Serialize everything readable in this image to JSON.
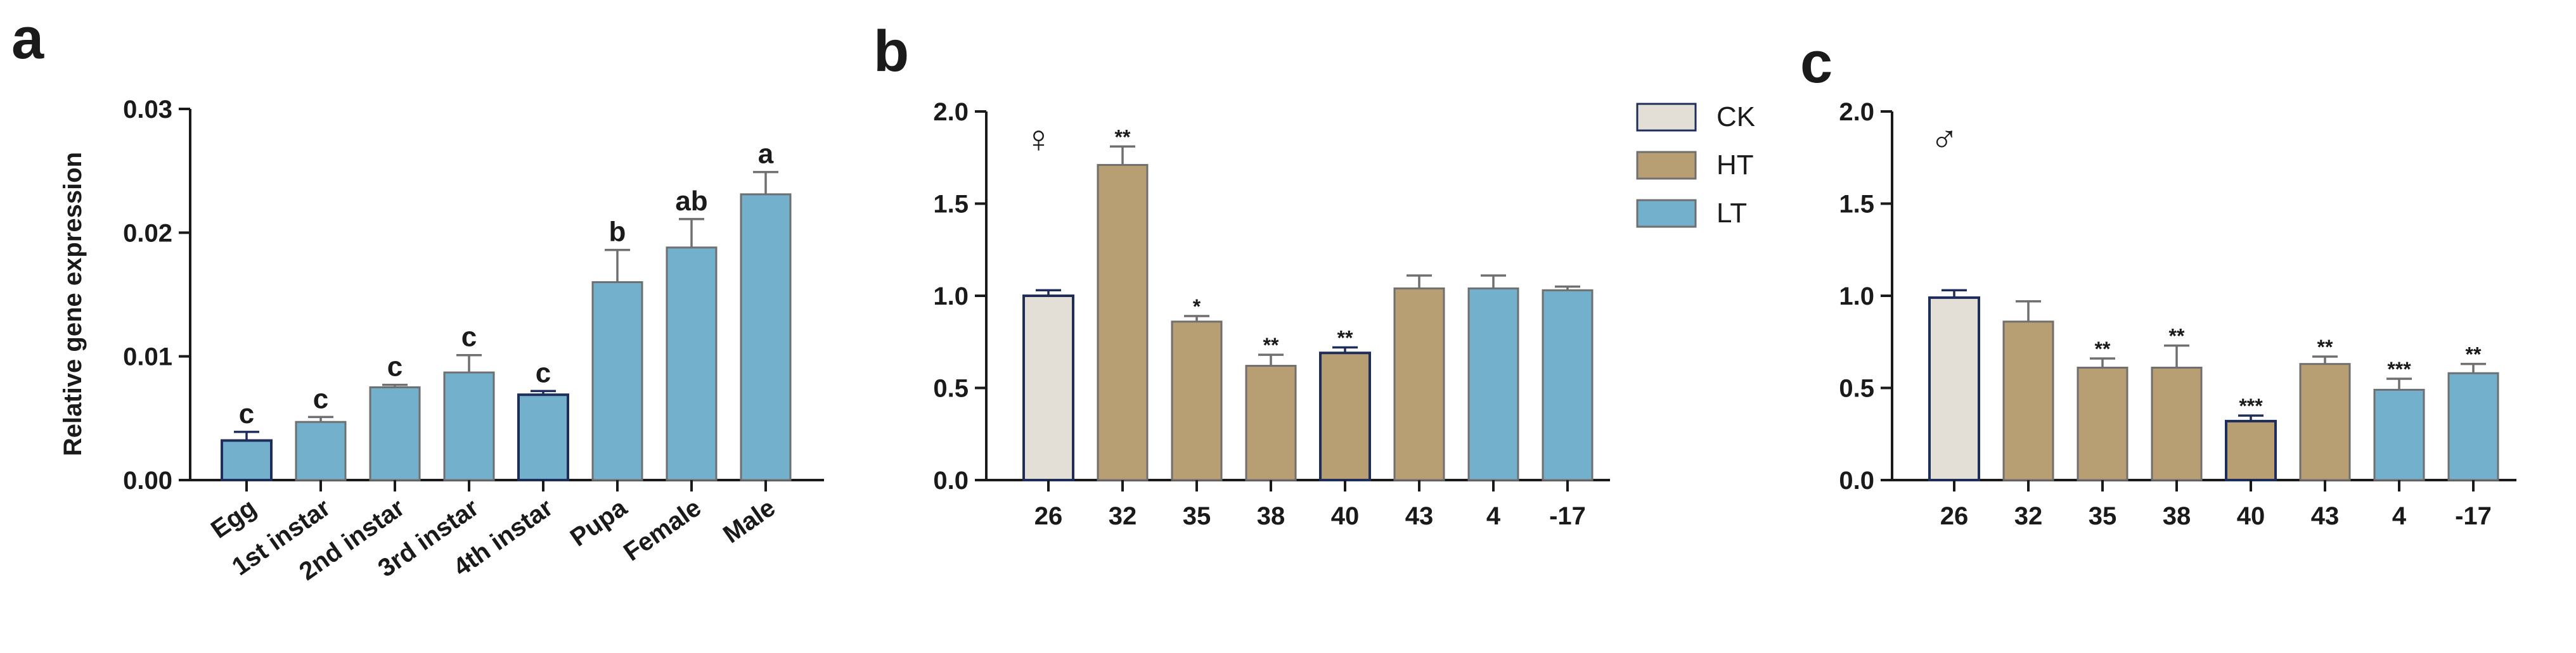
{
  "colors": {
    "CK": "#e4dfd6",
    "HT": "#b89e73",
    "LT": "#73b0cc",
    "axis": "#1a1a1a",
    "edge_dark": "#1f2d5a"
  },
  "chart_data": [
    {
      "panel": "a",
      "type": "bar",
      "ylabel": "Relative gene expression",
      "ylim": [
        0,
        0.03
      ],
      "yticks": [
        0,
        0.01,
        0.02,
        0.03
      ],
      "ytick_labels": [
        "0.00",
        "0.01",
        "0.02",
        "0.03"
      ],
      "categories": [
        "Egg",
        "1st instar",
        "2nd instar",
        "3rd instar",
        "4th instar",
        "Pupa",
        "Female",
        "Male"
      ],
      "values": [
        0.0032,
        0.0047,
        0.0075,
        0.0087,
        0.0069,
        0.016,
        0.0188,
        0.0231
      ],
      "errors": [
        0.0007,
        0.0004,
        0.0002,
        0.0014,
        0.0003,
        0.0026,
        0.0023,
        0.0018
      ],
      "groups": [
        "LT",
        "LT",
        "LT",
        "LT",
        "LT",
        "LT",
        "LT",
        "LT"
      ],
      "labels": [
        "c",
        "c",
        "c",
        "c",
        "c",
        "b",
        "ab",
        "a"
      ]
    },
    {
      "panel": "b",
      "type": "bar",
      "sex_symbol": "♀",
      "ylim": [
        0,
        2.0
      ],
      "yticks": [
        0,
        0.5,
        1.0,
        1.5,
        2.0
      ],
      "ytick_labels": [
        "0.0",
        "0.5",
        "1.0",
        "1.5",
        "2.0"
      ],
      "categories": [
        "26",
        "32",
        "35",
        "38",
        "40",
        "43",
        "4",
        "-17"
      ],
      "values": [
        1.0,
        1.71,
        0.86,
        0.62,
        0.69,
        1.04,
        1.04,
        1.03
      ],
      "errors": [
        0.03,
        0.1,
        0.03,
        0.06,
        0.03,
        0.07,
        0.07,
        0.02
      ],
      "groups": [
        "CK",
        "HT",
        "HT",
        "HT",
        "HT",
        "HT",
        "LT",
        "LT"
      ],
      "labels": [
        "",
        "**",
        "*",
        "**",
        "**",
        "",
        "",
        ""
      ],
      "legend": [
        "CK",
        "HT",
        "LT"
      ]
    },
    {
      "panel": "c",
      "type": "bar",
      "sex_symbol": "♂",
      "ylim": [
        0,
        2.0
      ],
      "yticks": [
        0,
        0.5,
        1.0,
        1.5,
        2.0
      ],
      "ytick_labels": [
        "0.0",
        "0.5",
        "1.0",
        "1.5",
        "2.0"
      ],
      "categories": [
        "26",
        "32",
        "35",
        "38",
        "40",
        "43",
        "4",
        "-17"
      ],
      "values": [
        0.99,
        0.86,
        0.61,
        0.61,
        0.32,
        0.63,
        0.49,
        0.58
      ],
      "errors": [
        0.04,
        0.11,
        0.05,
        0.12,
        0.03,
        0.04,
        0.06,
        0.05
      ],
      "groups": [
        "CK",
        "HT",
        "HT",
        "HT",
        "HT",
        "HT",
        "LT",
        "LT"
      ],
      "labels": [
        "",
        "",
        "**",
        "**",
        "***",
        "**",
        "***",
        "**"
      ]
    }
  ]
}
